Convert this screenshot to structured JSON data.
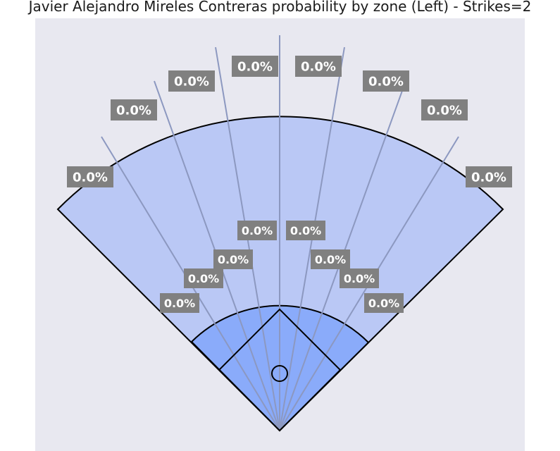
{
  "chart_data": {
    "type": "spray-chart",
    "title": "Javier Alejandro Mireles Contreras probability by zone (Left) - Strikes=2",
    "outfield_zones": [
      {
        "zone": "outfield-1",
        "value": "0.0%"
      },
      {
        "zone": "outfield-2",
        "value": "0.0%"
      },
      {
        "zone": "outfield-3",
        "value": "0.0%"
      },
      {
        "zone": "outfield-4",
        "value": "0.0%"
      },
      {
        "zone": "outfield-5",
        "value": "0.0%"
      },
      {
        "zone": "outfield-6",
        "value": "0.0%"
      },
      {
        "zone": "outfield-7",
        "value": "0.0%"
      },
      {
        "zone": "outfield-8",
        "value": "0.0%"
      }
    ],
    "infield_zones": [
      {
        "zone": "infield-1",
        "value": "0.0%"
      },
      {
        "zone": "infield-2",
        "value": "0.0%"
      },
      {
        "zone": "infield-3",
        "value": "0.0%"
      },
      {
        "zone": "infield-4",
        "value": "0.0%"
      },
      {
        "zone": "infield-5",
        "value": "0.0%"
      },
      {
        "zone": "infield-6",
        "value": "0.0%"
      },
      {
        "zone": "infield-7",
        "value": "0.0%"
      },
      {
        "zone": "infield-8",
        "value": "0.0%"
      }
    ],
    "colors": {
      "background": "#e8e8f0",
      "outfield_fill": "#bac8f5",
      "infield_fill": "#8aabfa",
      "divider_lines": "#8c98c0",
      "label_box": "#808080",
      "label_text": "#ffffff"
    }
  }
}
